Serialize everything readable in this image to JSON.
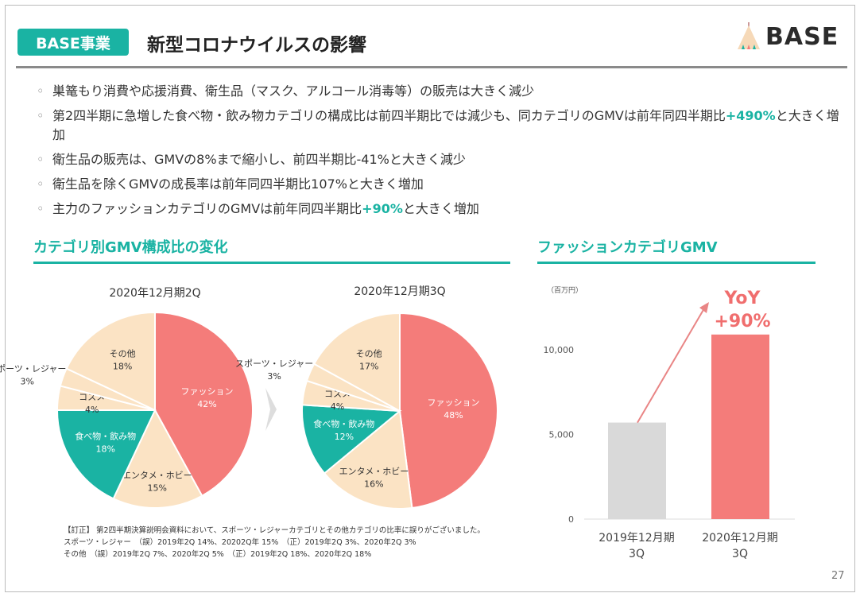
{
  "header": {
    "badge": "BASE事業",
    "title": "新型コロナウイルスの影響",
    "logo": "BASE"
  },
  "bullets": [
    {
      "pre": "巣篭もり消費や応援消費、衛生品（マスク、アルコール消毒等）の販売は大きく減少",
      "hl": "",
      "post": ""
    },
    {
      "pre": "第2四半期に急増した食べ物・飲み物カテゴリの構成比は前四半期比では減少も、同カテゴリのGMVは前年同四半期比",
      "hl": "+490%",
      "post": "と大きく増加"
    },
    {
      "pre": "衛生品の販売は、GMVの8%まで縮小し、前四半期比-41%と大きく減少",
      "hl": "",
      "post": ""
    },
    {
      "pre": "衛生品を除くGMVの成長率は前年同四半期比107%と大きく増加",
      "hl": "",
      "post": ""
    },
    {
      "pre": "主力のファッションカテゴリのGMVは前年同四半期比",
      "hl": "+90%",
      "post": "と大きく増加"
    }
  ],
  "sections": {
    "left": "カテゴリ別GMV構成比の変化",
    "right": "ファッションカテゴリGMV"
  },
  "colors": {
    "teal": "#1ab3a3",
    "fashion": "#f47c7a",
    "beige": "#fbe3c4",
    "gray": "#d9d9d9"
  },
  "chart_data": [
    {
      "type": "pie",
      "title": "2020年12月期2Q",
      "unit": "%",
      "slices": [
        {
          "label": "ファッション",
          "value": 42
        },
        {
          "label": "エンタメ・ホビー",
          "value": 15
        },
        {
          "label": "食べ物・飲み物",
          "value": 18
        },
        {
          "label": "コスメ",
          "value": 4
        },
        {
          "label": "スポーツ・レジャー",
          "value": 3
        },
        {
          "label": "その他",
          "value": 18
        }
      ]
    },
    {
      "type": "pie",
      "title": "2020年12月期3Q",
      "unit": "%",
      "slices": [
        {
          "label": "ファッション",
          "value": 48
        },
        {
          "label": "エンタメ・ホビー",
          "value": 16
        },
        {
          "label": "食べ物・飲み物",
          "value": 12
        },
        {
          "label": "コスメ",
          "value": 4
        },
        {
          "label": "スポーツ・レジャー",
          "value": 3
        },
        {
          "label": "その他",
          "value": 17
        }
      ]
    },
    {
      "type": "bar",
      "unit_label": "（百万円）",
      "categories": [
        "2019年12月期\n3Q",
        "2020年12月期\n3Q"
      ],
      "values": [
        5700,
        10900
      ],
      "ylim": [
        0,
        12000
      ],
      "yticks": [
        0,
        5000,
        10000
      ],
      "ytick_labels": [
        "0",
        "5,000",
        "10,000"
      ],
      "annotation": "YoY\n+90%",
      "grid": false
    }
  ],
  "note": [
    "【訂正】 第2四半期決算説明会資料において、スポーツ・レジャーカテゴリとその他カテゴリの比率に誤りがございました。",
    "スポーツ・レジャー　（誤）2019年2Q 14%、20202Q年 15%　（正）2019年2Q 3%、2020年2Q 3%",
    "その他　（誤）2019年2Q 7%、2020年2Q 5%　（正）2019年2Q 18%、2020年2Q 18%"
  ],
  "page_number": "27"
}
